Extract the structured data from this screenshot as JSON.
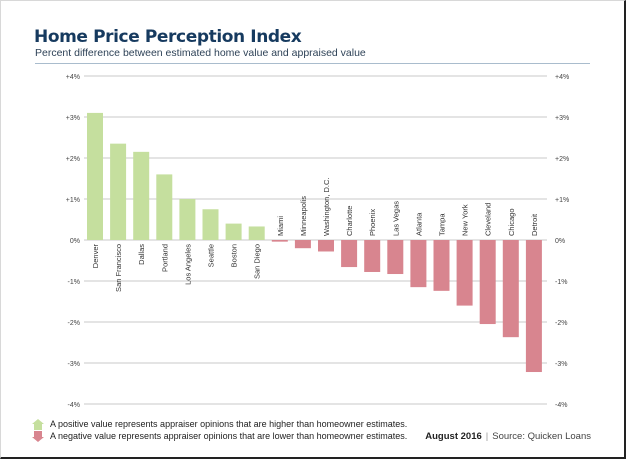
{
  "chart_data": {
    "type": "bar",
    "title": "Home Price Perception Index",
    "subtitle": "Percent difference between estimated home value and appraised value",
    "xlabel": "",
    "ylabel": "",
    "ylim": [
      -4,
      4
    ],
    "yticks": [
      4,
      3,
      2,
      1,
      0,
      -1,
      -2,
      -3,
      -4
    ],
    "ytick_labels": [
      "+4%",
      "+3%",
      "+2%",
      "+1%",
      "0%",
      "-1%",
      "-2%",
      "-3%",
      "-4%"
    ],
    "grid": true,
    "axis_labels_both_sides": true,
    "categories": [
      "Denver",
      "San Francisco",
      "Dallas",
      "Portland",
      "Los Angeles",
      "Seattle",
      "Boston",
      "San Diego",
      "Miami",
      "Minneapolis",
      "Washington, D.C.",
      "Charlotte",
      "Phoenix",
      "Las Vegas",
      "Atlanta",
      "Tampa",
      "New York",
      "Cleveland",
      "Chicago",
      "Detroit"
    ],
    "values": [
      3.1,
      2.35,
      2.15,
      1.6,
      1.0,
      0.75,
      0.4,
      0.33,
      -0.04,
      -0.2,
      -0.28,
      -0.66,
      -0.78,
      -0.83,
      -1.15,
      -1.24,
      -1.6,
      -2.05,
      -2.37,
      -3.22
    ],
    "colors": {
      "positive": "#c5df9e",
      "negative": "#d8858f",
      "grid": "#c8c8c8",
      "tick_text": "#444444",
      "label_text": "#333333"
    }
  },
  "legend": {
    "items": [
      {
        "icon": "house-up-arrow-icon",
        "color": "#c5df9e",
        "text": "A positive value represents appraiser opinions that are higher than homeowner estimates."
      },
      {
        "icon": "house-down-arrow-icon",
        "color": "#d8858f",
        "text": "A negative value represents appraiser opinions that are lower than homeowner estimates."
      }
    ]
  },
  "footer": {
    "date": "August 2016",
    "separator": "|",
    "source": "Source: Quicken Loans"
  }
}
